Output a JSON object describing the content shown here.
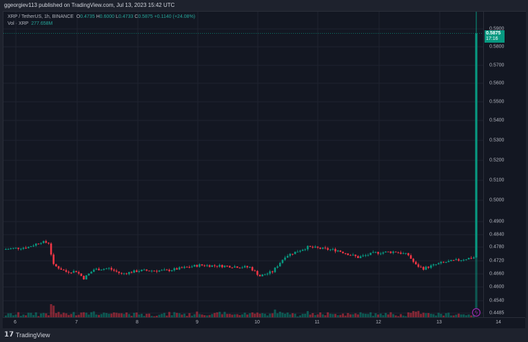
{
  "header": {
    "published": "ggeorgiev113 published on TradingView.com, Jul 13, 2023 15:42 UTC"
  },
  "legend": {
    "symbol": "XRP / TetherUS, 1h, BINANCE",
    "o_label": "O",
    "o": "0.4735",
    "h_label": "H",
    "h": "0.6000",
    "l_label": "L",
    "l": "0.4733",
    "c_label": "C",
    "c": "0.5875",
    "change": "+0.1140 (+24.08%)",
    "vol_label": "Vol · XRP",
    "vol": "277.658M"
  },
  "price_axis": {
    "labels": [
      "0.5900",
      "0.5800",
      "0.5700",
      "0.5600",
      "0.5500",
      "0.5400",
      "0.5300",
      "0.5200",
      "0.5100",
      "0.5000",
      "0.4900",
      "0.4840",
      "0.4780",
      "0.4720",
      "0.4660",
      "0.4600",
      "0.4540",
      "0.4485"
    ],
    "last_price": "0.5875",
    "countdown": "17:16"
  },
  "time_axis": {
    "labels": [
      "6",
      "7",
      "8",
      "9",
      "10",
      "11",
      "12",
      "13",
      "14"
    ]
  },
  "colors": {
    "up": "#089981",
    "down": "#f23645",
    "background": "#131722",
    "event_marker": "#9c27b0"
  },
  "chart_data": {
    "type": "candlestick",
    "interval": "1h",
    "close_keypoints_hours_from_jul6": [
      [
        -5,
        0.477
      ],
      [
        5,
        0.478
      ],
      [
        10,
        0.4805
      ],
      [
        13,
        0.48
      ],
      [
        15,
        0.47
      ],
      [
        20,
        0.467
      ],
      [
        24,
        0.4672
      ],
      [
        27,
        0.464
      ],
      [
        31,
        0.468
      ],
      [
        37,
        0.4685
      ],
      [
        42,
        0.466
      ],
      [
        49,
        0.4675
      ],
      [
        60,
        0.4675
      ],
      [
        73,
        0.47
      ],
      [
        85,
        0.4695
      ],
      [
        93,
        0.469
      ],
      [
        97,
        0.465
      ],
      [
        102,
        0.467
      ],
      [
        107,
        0.474
      ],
      [
        116,
        0.478
      ],
      [
        128,
        0.4765
      ],
      [
        136,
        0.4735
      ],
      [
        143,
        0.4755
      ],
      [
        151,
        0.476
      ],
      [
        156,
        0.4745
      ],
      [
        159,
        0.47
      ],
      [
        162,
        0.4685
      ],
      [
        169,
        0.471
      ],
      [
        182,
        0.4735
      ]
    ],
    "last_candle": {
      "open": 0.4735,
      "high": 0.6,
      "low": 0.4733,
      "close": 0.5875
    }
  },
  "footer": {
    "brand": "TradingView"
  }
}
